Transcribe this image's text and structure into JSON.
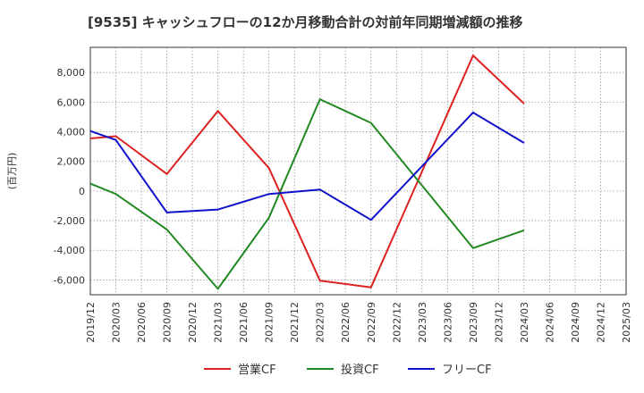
{
  "chart_data": {
    "type": "line",
    "title": "[9535]  キャッシュフローの12か月移動合計の対前年同期増減額の推移",
    "ylabel": "(百万円)",
    "xlabel": "",
    "ylim": [
      -7000,
      9700
    ],
    "yticks": [
      -6000,
      -4000,
      -2000,
      0,
      2000,
      4000,
      6000,
      8000
    ],
    "ytick_labels": [
      "-6,000",
      "-4,000",
      "-2,000",
      "0",
      "2,000",
      "4,000",
      "6,000",
      "8,000"
    ],
    "categories": [
      "2019/12",
      "2020/03",
      "2020/06",
      "2020/09",
      "2020/12",
      "2021/03",
      "2021/06",
      "2021/09",
      "2021/12",
      "2022/03",
      "2022/06",
      "2022/09",
      "2022/12",
      "2023/03",
      "2023/06",
      "2023/09",
      "2023/12",
      "2024/03",
      "2024/06",
      "2024/09",
      "2024/12",
      "2025/03"
    ],
    "legend_position": "bottom",
    "grid": true,
    "series": [
      {
        "name": "営業CF",
        "color": "#dd2222",
        "points": [
          [
            0,
            3550
          ],
          [
            1,
            3700
          ],
          [
            3,
            1150
          ],
          [
            5,
            5400
          ],
          [
            7,
            1550
          ],
          [
            9,
            -6050
          ],
          [
            11,
            -6500
          ],
          [
            15,
            9150
          ],
          [
            17,
            5900
          ]
        ]
      },
      {
        "name": "投資CF",
        "color": "#228822",
        "points": [
          [
            0,
            500
          ],
          [
            1,
            -200
          ],
          [
            3,
            -2600
          ],
          [
            5,
            -6600
          ],
          [
            7,
            -1800
          ],
          [
            9,
            6200
          ],
          [
            11,
            4600
          ],
          [
            15,
            -3850
          ],
          [
            17,
            -2650
          ]
        ]
      },
      {
        "name": "フリーCF",
        "color": "#1111cc",
        "points": [
          [
            0,
            4050
          ],
          [
            1,
            3450
          ],
          [
            3,
            -1450
          ],
          [
            5,
            -1250
          ],
          [
            7,
            -200
          ],
          [
            9,
            100
          ],
          [
            11,
            -1950
          ],
          [
            15,
            5300
          ],
          [
            17,
            3250
          ]
        ]
      }
    ]
  }
}
